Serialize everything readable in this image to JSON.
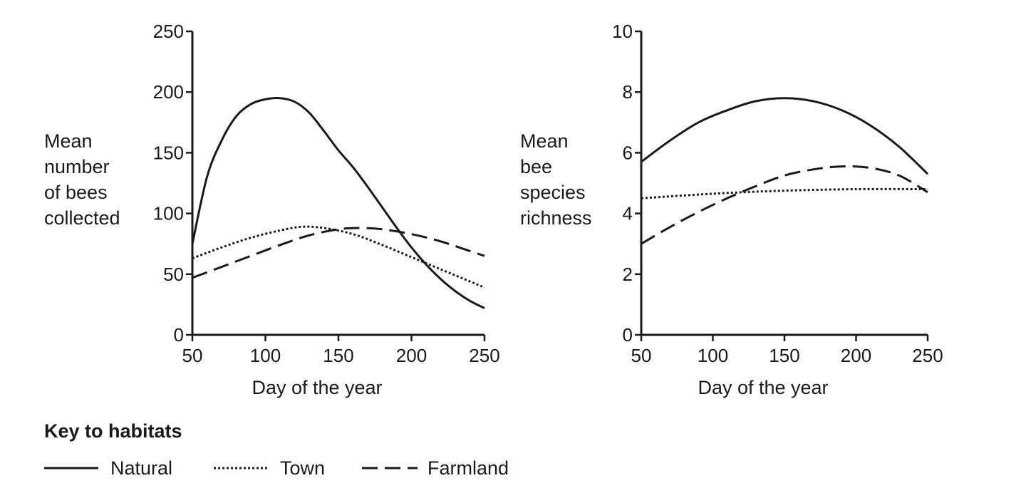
{
  "key": {
    "title": "Key to habitats",
    "entries": [
      {
        "label": "Natural",
        "style": "solid"
      },
      {
        "label": "Town",
        "style": "dotted"
      },
      {
        "label": "Farmland",
        "style": "dashed"
      }
    ]
  },
  "chart_data": [
    {
      "type": "line",
      "title": "",
      "xlabel": "Day of the year",
      "ylabel": [
        "Mean",
        "number",
        "of bees",
        "collected"
      ],
      "xlim": [
        50,
        250
      ],
      "ylim": [
        0,
        250
      ],
      "xticks": [
        50,
        100,
        150,
        200,
        250
      ],
      "yticks": [
        0,
        50,
        100,
        150,
        200,
        250
      ],
      "grid": false,
      "series": [
        {
          "name": "Natural",
          "style": "solid",
          "x": [
            50,
            60,
            70,
            80,
            90,
            100,
            110,
            120,
            130,
            140,
            150,
            160,
            170,
            180,
            190,
            200,
            210,
            220,
            230,
            240,
            250
          ],
          "y": [
            75,
            130,
            160,
            180,
            190,
            194,
            195,
            192,
            183,
            168,
            152,
            138,
            122,
            105,
            88,
            72,
            58,
            46,
            36,
            28,
            22
          ]
        },
        {
          "name": "Town",
          "style": "dotted",
          "x": [
            50,
            70,
            90,
            110,
            125,
            140,
            160,
            180,
            200,
            220,
            240,
            250
          ],
          "y": [
            63,
            72,
            80,
            86,
            89,
            88,
            83,
            74,
            64,
            54,
            44,
            39
          ]
        },
        {
          "name": "Farmland",
          "style": "dashed",
          "x": [
            50,
            70,
            90,
            110,
            130,
            150,
            165,
            180,
            200,
            220,
            240,
            250
          ],
          "y": [
            47,
            56,
            65,
            74,
            82,
            87,
            88,
            87,
            83,
            77,
            69,
            65
          ]
        }
      ]
    },
    {
      "type": "line",
      "title": "",
      "xlabel": "Day of the year",
      "ylabel": [
        "Mean",
        "bee",
        "species",
        "richness"
      ],
      "xlim": [
        50,
        250
      ],
      "ylim": [
        0,
        10
      ],
      "xticks": [
        50,
        100,
        150,
        200,
        250
      ],
      "yticks": [
        0,
        2,
        4,
        6,
        8,
        10
      ],
      "grid": false,
      "series": [
        {
          "name": "Natural",
          "style": "solid",
          "x": [
            50,
            70,
            90,
            110,
            130,
            150,
            170,
            190,
            210,
            230,
            250
          ],
          "y": [
            5.7,
            6.4,
            7.0,
            7.4,
            7.7,
            7.8,
            7.7,
            7.4,
            6.9,
            6.2,
            5.3
          ]
        },
        {
          "name": "Town",
          "style": "dotted",
          "x": [
            50,
            100,
            150,
            200,
            250
          ],
          "y": [
            4.5,
            4.65,
            4.75,
            4.8,
            4.8
          ]
        },
        {
          "name": "Farmland",
          "style": "dashed",
          "x": [
            50,
            70,
            90,
            110,
            130,
            150,
            170,
            190,
            210,
            230,
            250
          ],
          "y": [
            3.0,
            3.55,
            4.05,
            4.5,
            4.9,
            5.25,
            5.45,
            5.55,
            5.5,
            5.25,
            4.7
          ]
        }
      ]
    }
  ]
}
